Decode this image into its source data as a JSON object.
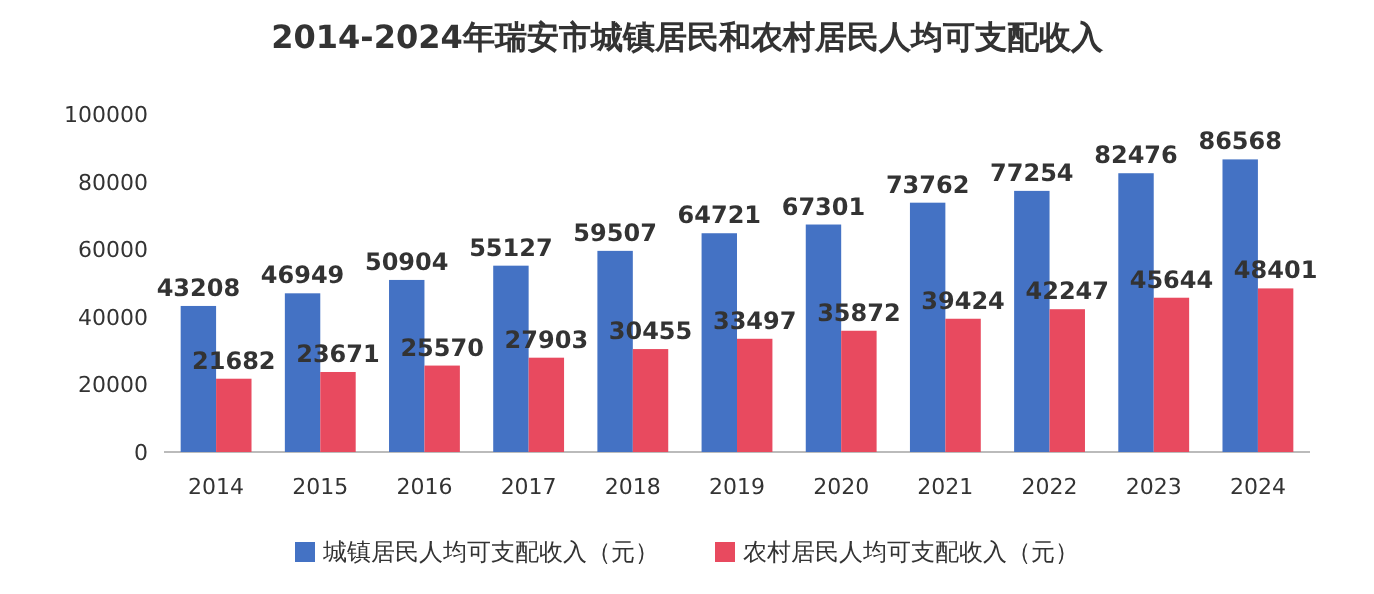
{
  "chart_data": {
    "type": "bar",
    "title": "2014-2024年瑞安市城镇居民和农村居民人均可支配收入",
    "categories": [
      "2014",
      "2015",
      "2016",
      "2017",
      "2018",
      "2019",
      "2020",
      "2021",
      "2022",
      "2023",
      "2024"
    ],
    "series": [
      {
        "name": "城镇居民人均可支配收入（元）",
        "color": "#4472c4",
        "values": [
          43208,
          46949,
          50904,
          55127,
          59507,
          64721,
          67301,
          73762,
          77254,
          82476,
          86568
        ]
      },
      {
        "name": "农村居民人均可支配收入（元）",
        "color": "#e84a5f",
        "values": [
          21682,
          23671,
          25570,
          27903,
          30455,
          33497,
          35872,
          39424,
          42247,
          45644,
          48401
        ]
      }
    ],
    "ylim": [
      0,
      100000
    ],
    "yticks": [
      0,
      20000,
      40000,
      60000,
      80000,
      100000
    ],
    "data_labels": true,
    "legend": "bottom"
  }
}
